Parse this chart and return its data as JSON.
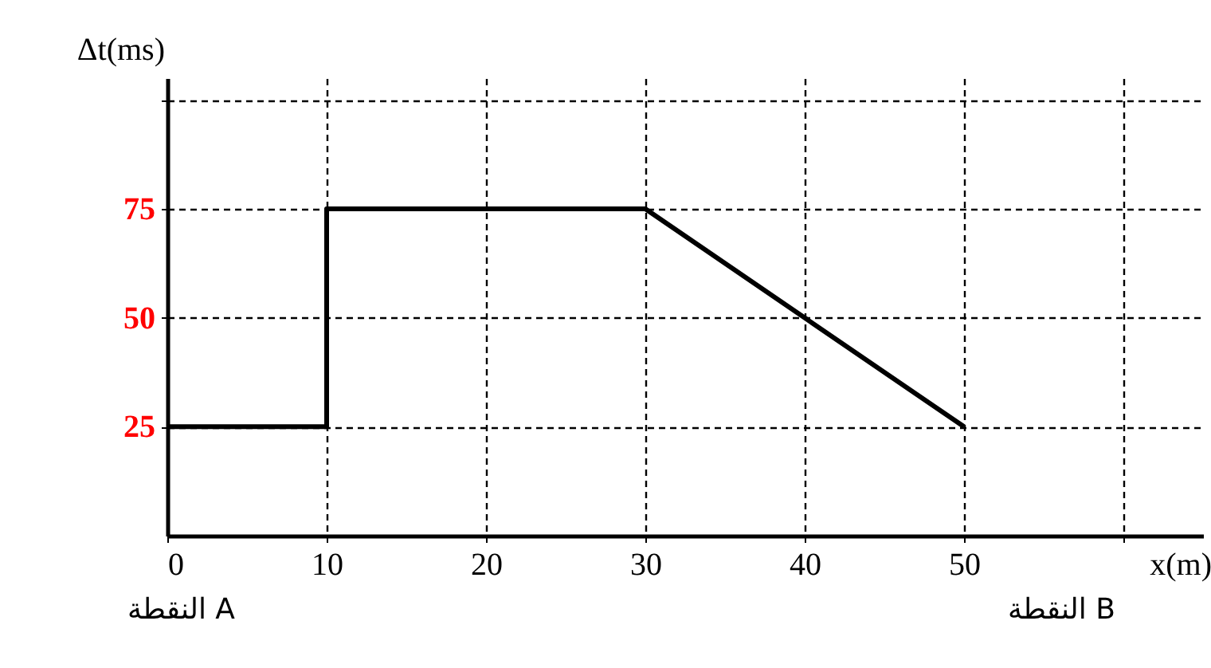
{
  "chart_data": {
    "type": "line",
    "xlabel": "x(m)",
    "ylabel": "Δt(ms)",
    "x": [
      0,
      10,
      10,
      30,
      50
    ],
    "series": [
      {
        "color": "#000000",
        "values": [
          25,
          25,
          75,
          75,
          25
        ]
      }
    ],
    "xlim": [
      0,
      65
    ],
    "ylim": [
      0,
      105
    ],
    "xticks": [
      0,
      10,
      20,
      30,
      40,
      50,
      {
        "value": 60,
        "label": null
      }
    ],
    "yticks": [
      25,
      50,
      75,
      {
        "value": 100,
        "label": null
      }
    ],
    "grid": true,
    "marker": "none",
    "line_style": "solid",
    "annotations": [
      "النقطة A",
      "النقطة B"
    ]
  }
}
